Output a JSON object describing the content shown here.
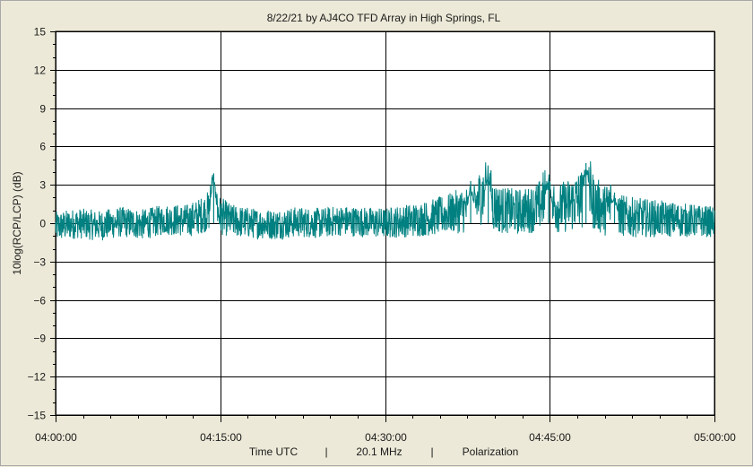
{
  "chart_data": {
    "type": "line",
    "title": "8/22/21  by  AJ4CO TFD Array  in  High Springs, FL",
    "ylabel": "10log(RCP/LCP) (dB)",
    "footer": {
      "xlabel": "Time UTC",
      "sep1": "|",
      "frequency": "20.1 MHz",
      "sep2": "|",
      "mode": "Polarization"
    },
    "ylim": [
      -15,
      15
    ],
    "yticks": [
      15,
      12,
      9,
      6,
      3,
      0,
      -3,
      -6,
      -9,
      -12,
      -15
    ],
    "y_tick_labels": [
      "15",
      "12",
      "9",
      "6",
      "3",
      "0",
      "−3",
      "−6",
      "−9",
      "−12",
      "−15"
    ],
    "xlim_minutes": [
      0,
      60
    ],
    "xticks_minutes": [
      0,
      15,
      30,
      45,
      60
    ],
    "x_tick_labels": [
      "04:00:00",
      "04:15:00",
      "04:30:00",
      "04:45:00",
      "05:00:00"
    ],
    "grid": true,
    "line_color": "#008080",
    "series": [
      {
        "x_minutes": [
          0,
          2,
          4,
          6,
          8,
          10,
          12,
          13,
          14,
          14.3,
          14.5,
          15,
          16,
          18,
          20,
          22,
          24,
          26,
          28,
          30,
          32,
          34,
          36,
          37,
          38,
          39,
          39.5,
          40,
          41,
          42,
          43,
          44,
          44.7,
          45,
          46,
          47,
          48,
          48.5,
          49,
          50,
          50.5,
          51,
          52,
          54,
          56,
          58,
          60
        ],
        "center_db": [
          -0.3,
          0,
          -0.2,
          0.1,
          -0.1,
          0.3,
          0.2,
          0.5,
          1.0,
          2.5,
          1.2,
          0.6,
          0.2,
          0.0,
          -0.1,
          0.1,
          0.0,
          0.2,
          0.1,
          0.0,
          0.2,
          0.4,
          0.8,
          1.0,
          1.2,
          2.5,
          2.3,
          1.2,
          1.0,
          0.9,
          1.0,
          1.3,
          2.3,
          1.6,
          1.2,
          1.5,
          2.0,
          3.0,
          1.6,
          1.0,
          1.5,
          0.8,
          0.5,
          0.4,
          0.3,
          0.2,
          0.1
        ],
        "spread_db": [
          1.2,
          1.2,
          1.2,
          1.2,
          1.2,
          1.2,
          1.3,
          1.4,
          1.6,
          2.2,
          1.8,
          1.5,
          1.3,
          1.2,
          1.2,
          1.2,
          1.2,
          1.2,
          1.2,
          1.2,
          1.3,
          1.4,
          1.6,
          1.8,
          2.0,
          2.4,
          2.4,
          2.0,
          1.8,
          1.8,
          1.8,
          2.0,
          2.4,
          2.2,
          2.0,
          2.2,
          2.4,
          2.6,
          2.2,
          2.0,
          2.2,
          1.8,
          1.6,
          1.5,
          1.4,
          1.3,
          1.2
        ],
        "peaks": [
          {
            "x_minutes": 14.4,
            "y_db": 3.9
          },
          {
            "x_minutes": 37.8,
            "y_db": 3.3
          },
          {
            "x_minutes": 39.4,
            "y_db": 3.9
          },
          {
            "x_minutes": 44.9,
            "y_db": 3.5
          },
          {
            "x_minutes": 48.3,
            "y_db": 4.7
          },
          {
            "x_minutes": 50.9,
            "y_db": 2.4
          }
        ]
      }
    ]
  }
}
